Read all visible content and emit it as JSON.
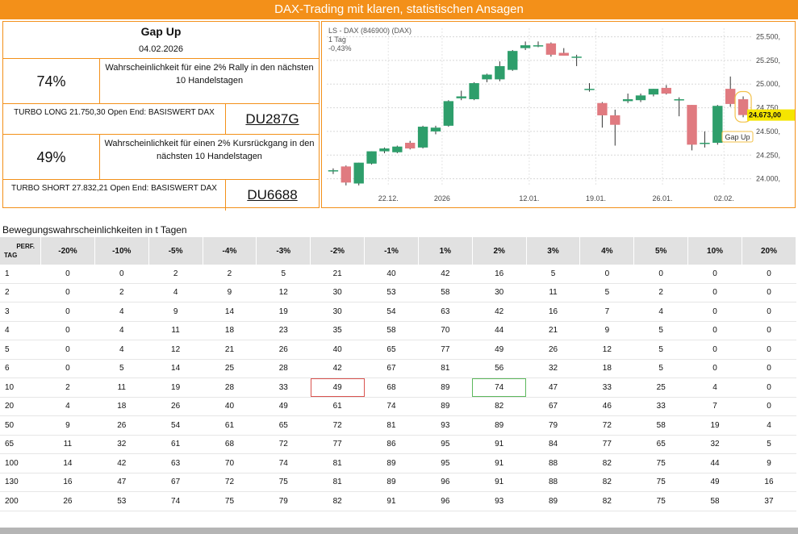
{
  "header": {
    "title": "DAX-Trading mit klaren, statistischen Ansagen"
  },
  "info": {
    "title": "Gap Up",
    "date": "04.02.2026",
    "long_pct": "74%",
    "long_text": "Wahrscheinlichkeit für eine 2% Rally in den nächsten 10 Handelstagen",
    "long_turbo": "TURBO LONG 21.750,30 Open End: BASISWERT DAX",
    "long_code": "DU287G",
    "short_pct": "49%",
    "short_text": "Wahrscheinlichkeit für einen 2% Kursrückgang in den nächsten 10 Handelstagen",
    "short_turbo": "TURBO SHORT 27.832,21 Open End: BASISWERT DAX",
    "short_code": "DU6688"
  },
  "chart_data": {
    "type": "candlestick",
    "title": "LS - DAX (846900) (DAX)",
    "subtitle": "1 Tag",
    "change": "-0,43%",
    "y_ticks": [
      "25.500,",
      "25.250,",
      "25.000,",
      "24.750,",
      "24.500,",
      "24.250,",
      "24.000,"
    ],
    "y_tick_values": [
      25500,
      25250,
      25000,
      24750,
      24500,
      24250,
      24000
    ],
    "ylim": [
      23920,
      25590
    ],
    "x_ticks": [
      "22.12.",
      "2026",
      "12.01.",
      "19.01.",
      "26.01.",
      "02.02."
    ],
    "x_tick_index": [
      4.3,
      8.5,
      15.3,
      20.5,
      25.7,
      30.5
    ],
    "last_price_label": "24.673,00",
    "annotation": "Gap Up",
    "candles": [
      {
        "o": 24090,
        "h": 24110,
        "l": 24050,
        "c": 24090
      },
      {
        "o": 24130,
        "h": 24140,
        "l": 23930,
        "c": 23960
      },
      {
        "o": 23950,
        "h": 24170,
        "l": 23930,
        "c": 24170
      },
      {
        "o": 24160,
        "h": 24290,
        "l": 24150,
        "c": 24290
      },
      {
        "o": 24290,
        "h": 24330,
        "l": 24270,
        "c": 24320
      },
      {
        "o": 24280,
        "h": 24350,
        "l": 24270,
        "c": 24340
      },
      {
        "o": 24380,
        "h": 24400,
        "l": 24310,
        "c": 24320
      },
      {
        "o": 24330,
        "h": 24560,
        "l": 24320,
        "c": 24550
      },
      {
        "o": 24500,
        "h": 24560,
        "l": 24470,
        "c": 24540
      },
      {
        "o": 24560,
        "h": 24830,
        "l": 24550,
        "c": 24820
      },
      {
        "o": 24850,
        "h": 24930,
        "l": 24830,
        "c": 24870
      },
      {
        "o": 24840,
        "h": 25020,
        "l": 24830,
        "c": 25010
      },
      {
        "o": 25050,
        "h": 25110,
        "l": 25020,
        "c": 25100
      },
      {
        "o": 25050,
        "h": 25240,
        "l": 25030,
        "c": 25190
      },
      {
        "o": 25150,
        "h": 25360,
        "l": 25140,
        "c": 25350
      },
      {
        "o": 25380,
        "h": 25450,
        "l": 25360,
        "c": 25410
      },
      {
        "o": 25410,
        "h": 25450,
        "l": 25390,
        "c": 25410
      },
      {
        "o": 25430,
        "h": 25440,
        "l": 25290,
        "c": 25310
      },
      {
        "o": 25330,
        "h": 25380,
        "l": 25300,
        "c": 25300
      },
      {
        "o": 25290,
        "h": 25310,
        "l": 25190,
        "c": 25290
      },
      {
        "o": 24950,
        "h": 25010,
        "l": 24920,
        "c": 24950
      },
      {
        "o": 24800,
        "h": 24810,
        "l": 24540,
        "c": 24670
      },
      {
        "o": 24670,
        "h": 24730,
        "l": 24350,
        "c": 24570
      },
      {
        "o": 24820,
        "h": 24900,
        "l": 24800,
        "c": 24840
      },
      {
        "o": 24830,
        "h": 24900,
        "l": 24810,
        "c": 24880
      },
      {
        "o": 24890,
        "h": 24950,
        "l": 24870,
        "c": 24950
      },
      {
        "o": 24960,
        "h": 24990,
        "l": 24890,
        "c": 24900
      },
      {
        "o": 24830,
        "h": 24860,
        "l": 24660,
        "c": 24840
      },
      {
        "o": 24780,
        "h": 24780,
        "l": 24300,
        "c": 24360
      },
      {
        "o": 24380,
        "h": 24500,
        "l": 24330,
        "c": 24380
      },
      {
        "o": 24380,
        "h": 24780,
        "l": 24360,
        "c": 24770
      },
      {
        "o": 24950,
        "h": 25080,
        "l": 24760,
        "c": 24790
      },
      {
        "o": 24840,
        "h": 24870,
        "l": 24650,
        "c": 24673
      }
    ]
  },
  "table": {
    "section_title": "Bewegungswahrscheinlichkeiten in t Tagen",
    "corner_perf": "PERF.",
    "corner_tag": "TAG",
    "headers": [
      "-20%",
      "-10%",
      "-5%",
      "-4%",
      "-3%",
      "-2%",
      "-1%",
      "1%",
      "2%",
      "3%",
      "4%",
      "5%",
      "10%",
      "20%"
    ],
    "rows": [
      [
        "1",
        "0",
        "0",
        "2",
        "2",
        "5",
        "21",
        "40",
        "42",
        "16",
        "5",
        "0",
        "0",
        "0",
        "0"
      ],
      [
        "2",
        "0",
        "2",
        "4",
        "9",
        "12",
        "30",
        "53",
        "58",
        "30",
        "11",
        "5",
        "2",
        "0",
        "0"
      ],
      [
        "3",
        "0",
        "4",
        "9",
        "14",
        "19",
        "30",
        "54",
        "63",
        "42",
        "16",
        "7",
        "4",
        "0",
        "0"
      ],
      [
        "4",
        "0",
        "4",
        "11",
        "18",
        "23",
        "35",
        "58",
        "70",
        "44",
        "21",
        "9",
        "5",
        "0",
        "0"
      ],
      [
        "5",
        "0",
        "4",
        "12",
        "21",
        "26",
        "40",
        "65",
        "77",
        "49",
        "26",
        "12",
        "5",
        "0",
        "0"
      ],
      [
        "6",
        "0",
        "5",
        "14",
        "25",
        "28",
        "42",
        "67",
        "81",
        "56",
        "32",
        "18",
        "5",
        "0",
        "0"
      ],
      [
        "10",
        "2",
        "11",
        "19",
        "28",
        "33",
        "49",
        "68",
        "89",
        "74",
        "47",
        "33",
        "25",
        "4",
        "0"
      ],
      [
        "20",
        "4",
        "18",
        "26",
        "40",
        "49",
        "61",
        "74",
        "89",
        "82",
        "67",
        "46",
        "33",
        "7",
        "0"
      ],
      [
        "50",
        "9",
        "26",
        "54",
        "61",
        "65",
        "72",
        "81",
        "93",
        "89",
        "79",
        "72",
        "58",
        "19",
        "4"
      ],
      [
        "65",
        "11",
        "32",
        "61",
        "68",
        "72",
        "77",
        "86",
        "95",
        "91",
        "84",
        "77",
        "65",
        "32",
        "5"
      ],
      [
        "100",
        "14",
        "42",
        "63",
        "70",
        "74",
        "81",
        "89",
        "95",
        "91",
        "88",
        "82",
        "75",
        "44",
        "9"
      ],
      [
        "130",
        "16",
        "47",
        "67",
        "72",
        "75",
        "81",
        "89",
        "96",
        "91",
        "88",
        "82",
        "75",
        "49",
        "16"
      ],
      [
        "200",
        "26",
        "53",
        "74",
        "75",
        "79",
        "82",
        "91",
        "96",
        "93",
        "89",
        "82",
        "75",
        "58",
        "37"
      ]
    ]
  },
  "colors": {
    "accent": "#f39019",
    "up": "#2e9e6b",
    "down": "#e07a80"
  }
}
